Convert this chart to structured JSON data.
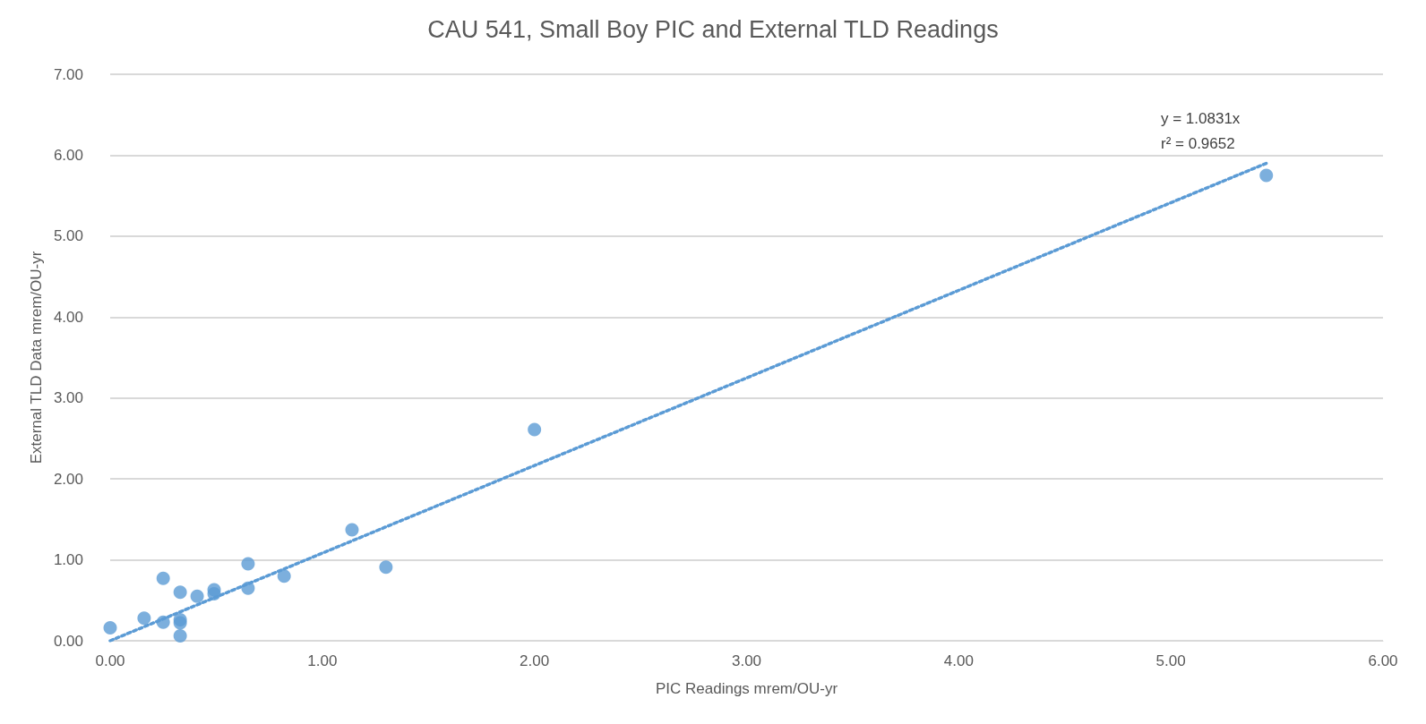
{
  "chart_data": {
    "type": "scatter",
    "title": "CAU 541, Small Boy PIC and External TLD Readings",
    "xlabel": "PIC Readings mrem/OU-yr",
    "ylabel": "External TLD Data mrem/OU-yr",
    "series": [
      {
        "color": "#5b9bd5",
        "marker": "circle",
        "x": [
          0,
          0.16,
          0.25,
          0.25,
          0.33,
          0.33,
          0.33,
          0.33,
          0.41,
          0.49,
          0.49,
          0.65,
          0.65,
          0.82,
          1.14,
          1.3,
          2.0,
          5.45
        ],
        "values": [
          0.16,
          0.28,
          0.77,
          0.23,
          0.6,
          0.26,
          0.22,
          0.06,
          0.55,
          0.63,
          0.58,
          0.95,
          0.65,
          0.8,
          1.37,
          0.91,
          2.61,
          5.75
        ]
      },
      {
        "type": "line",
        "color": "#5b9bd5",
        "line_style": "dotted",
        "marker": "none",
        "x": [
          0,
          5.45
        ],
        "values": [
          0,
          5.9
        ]
      }
    ],
    "annotations": [
      "y = 1.0831x",
      "r² = 0.9652"
    ],
    "xlim": [
      0,
      6
    ],
    "ylim": [
      0,
      7
    ],
    "xticks": [
      {
        "value": 0,
        "label": "0.00"
      },
      {
        "value": 1,
        "label": "1.00"
      },
      {
        "value": 2,
        "label": "2.00"
      },
      {
        "value": 3,
        "label": "3.00"
      },
      {
        "value": 4,
        "label": "4.00"
      },
      {
        "value": 5,
        "label": "5.00"
      },
      {
        "value": 6,
        "label": "6.00"
      }
    ],
    "yticks": [
      {
        "value": 0,
        "label": "0.00"
      },
      {
        "value": 1,
        "label": "1.00"
      },
      {
        "value": 2,
        "label": "2.00"
      },
      {
        "value": 3,
        "label": "3.00"
      },
      {
        "value": 4,
        "label": "4.00"
      },
      {
        "value": 5,
        "label": "5.00"
      },
      {
        "value": 6,
        "label": "6.00"
      },
      {
        "value": 7,
        "label": "7.00"
      }
    ],
    "grid": "y"
  }
}
